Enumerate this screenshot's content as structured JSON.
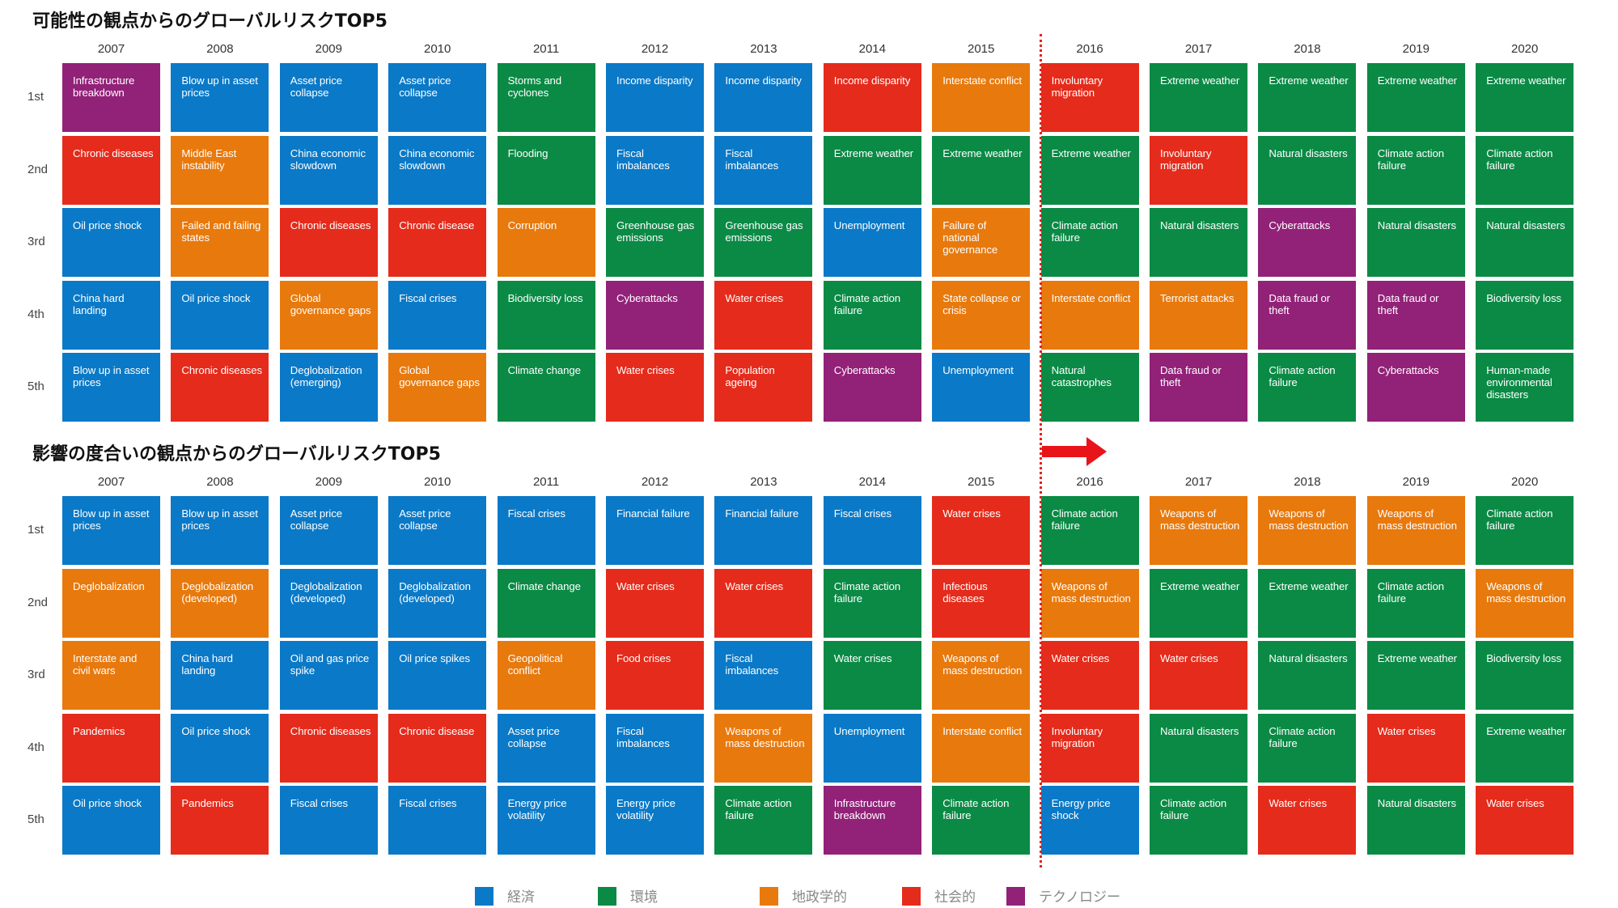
{
  "colors": {
    "economic": "#0a79c7",
    "environmental": "#0a8a45",
    "geopolitical": "#e8790d",
    "societal": "#e52b1b",
    "technological": "#922178"
  },
  "row_labels": [
    "1st",
    "2nd",
    "3rd",
    "4th",
    "5th"
  ],
  "legend": [
    {
      "category": "economic",
      "label": "経済"
    },
    {
      "category": "environmental",
      "label": "環境"
    },
    {
      "category": "geopolitical",
      "label": "地政学的"
    },
    {
      "category": "societal",
      "label": "社会的"
    },
    {
      "category": "technological",
      "label": "テクノロジー"
    }
  ],
  "chart_data": [
    {
      "type": "table",
      "title": "可能性の観点からのグローバルリスクTOP5",
      "years": [
        "2007",
        "2008",
        "2009",
        "2010",
        "2011",
        "2012",
        "2013",
        "2014",
        "2015",
        "2016",
        "2017",
        "2018",
        "2019",
        "2020"
      ],
      "columns": [
        {
          "year": "2007",
          "cells": [
            {
              "label": "Infrastructure breakdown",
              "category": "technological"
            },
            {
              "label": "Chronic diseases",
              "category": "societal"
            },
            {
              "label": "Oil price shock",
              "category": "economic"
            },
            {
              "label": "China hard landing",
              "category": "economic"
            },
            {
              "label": "Blow up in asset prices",
              "category": "economic"
            }
          ]
        },
        {
          "year": "2008",
          "cells": [
            {
              "label": "Blow up in asset prices",
              "category": "economic"
            },
            {
              "label": "Middle East instability",
              "category": "geopolitical"
            },
            {
              "label": "Failed and failing states",
              "category": "geopolitical"
            },
            {
              "label": "Oil price shock",
              "category": "economic"
            },
            {
              "label": "Chronic diseases",
              "category": "societal"
            }
          ]
        },
        {
          "year": "2009",
          "cells": [
            {
              "label": "Asset price collapse",
              "category": "economic"
            },
            {
              "label": "China economic slowdown",
              "category": "economic"
            },
            {
              "label": "Chronic diseases",
              "category": "societal"
            },
            {
              "label": "Global governance gaps",
              "category": "geopolitical"
            },
            {
              "label": "Deglobalization (emerging)",
              "category": "economic"
            }
          ]
        },
        {
          "year": "2010",
          "cells": [
            {
              "label": "Asset price collapse",
              "category": "economic"
            },
            {
              "label": "China economic slowdown",
              "category": "economic"
            },
            {
              "label": "Chronic disease",
              "category": "societal"
            },
            {
              "label": "Fiscal crises",
              "category": "economic"
            },
            {
              "label": "Global governance gaps",
              "category": "geopolitical"
            }
          ]
        },
        {
          "year": "2011",
          "cells": [
            {
              "label": "Storms and cyclones",
              "category": "environmental"
            },
            {
              "label": "Flooding",
              "category": "environmental"
            },
            {
              "label": "Corruption",
              "category": "geopolitical"
            },
            {
              "label": "Biodiversity loss",
              "category": "environmental"
            },
            {
              "label": "Climate change",
              "category": "environmental"
            }
          ]
        },
        {
          "year": "2012",
          "cells": [
            {
              "label": "Income disparity",
              "category": "economic"
            },
            {
              "label": "Fiscal imbalances",
              "category": "economic"
            },
            {
              "label": "Greenhouse gas emissions",
              "category": "environmental"
            },
            {
              "label": "Cyberattacks",
              "category": "technological"
            },
            {
              "label": "Water crises",
              "category": "societal"
            }
          ]
        },
        {
          "year": "2013",
          "cells": [
            {
              "label": "Income disparity",
              "category": "economic"
            },
            {
              "label": "Fiscal imbalances",
              "category": "economic"
            },
            {
              "label": "Greenhouse gas emissions",
              "category": "environmental"
            },
            {
              "label": "Water crises",
              "category": "societal"
            },
            {
              "label": "Population ageing",
              "category": "societal"
            }
          ]
        },
        {
          "year": "2014",
          "cells": [
            {
              "label": "Income disparity",
              "category": "societal"
            },
            {
              "label": "Extreme weather",
              "category": "environmental"
            },
            {
              "label": "Unemployment",
              "category": "economic"
            },
            {
              "label": "Climate action failure",
              "category": "environmental"
            },
            {
              "label": "Cyberattacks",
              "category": "technological"
            }
          ]
        },
        {
          "year": "2015",
          "cells": [
            {
              "label": "Interstate conflict",
              "category": "geopolitical"
            },
            {
              "label": "Extreme weather",
              "category": "environmental"
            },
            {
              "label": "Failure of national governance",
              "category": "geopolitical"
            },
            {
              "label": "State collapse or crisis",
              "category": "geopolitical"
            },
            {
              "label": "Unemployment",
              "category": "economic"
            }
          ]
        },
        {
          "year": "2016",
          "cells": [
            {
              "label": "Involuntary migration",
              "category": "societal"
            },
            {
              "label": "Extreme weather",
              "category": "environmental"
            },
            {
              "label": "Climate action failure",
              "category": "environmental"
            },
            {
              "label": "Interstate conflict",
              "category": "geopolitical"
            },
            {
              "label": "Natural catastrophes",
              "category": "environmental"
            }
          ]
        },
        {
          "year": "2017",
          "cells": [
            {
              "label": "Extreme weather",
              "category": "environmental"
            },
            {
              "label": "Involuntary migration",
              "category": "societal"
            },
            {
              "label": "Natural disasters",
              "category": "environmental"
            },
            {
              "label": "Terrorist attacks",
              "category": "geopolitical"
            },
            {
              "label": "Data fraud or theft",
              "category": "technological"
            }
          ]
        },
        {
          "year": "2018",
          "cells": [
            {
              "label": "Extreme weather",
              "category": "environmental"
            },
            {
              "label": "Natural disasters",
              "category": "environmental"
            },
            {
              "label": "Cyberattacks",
              "category": "technological"
            },
            {
              "label": "Data fraud or theft",
              "category": "technological"
            },
            {
              "label": "Climate action failure",
              "category": "environmental"
            }
          ]
        },
        {
          "year": "2019",
          "cells": [
            {
              "label": "Extreme weather",
              "category": "environmental"
            },
            {
              "label": "Climate action failure",
              "category": "environmental"
            },
            {
              "label": "Natural disasters",
              "category": "environmental"
            },
            {
              "label": "Data fraud or theft",
              "category": "technological"
            },
            {
              "label": "Cyberattacks",
              "category": "technological"
            }
          ]
        },
        {
          "year": "2020",
          "cells": [
            {
              "label": "Extreme weather",
              "category": "environmental"
            },
            {
              "label": "Climate action failure",
              "category": "environmental"
            },
            {
              "label": "Natural disasters",
              "category": "environmental"
            },
            {
              "label": "Biodiversity loss",
              "category": "environmental"
            },
            {
              "label": "Human-made environmental disasters",
              "category": "environmental"
            }
          ]
        }
      ]
    },
    {
      "type": "table",
      "title": "影響の度合いの観点からのグローバルリスクTOP5",
      "years": [
        "2007",
        "2008",
        "2009",
        "2010",
        "2011",
        "2012",
        "2013",
        "2014",
        "2015",
        "2016",
        "2017",
        "2018",
        "2019",
        "2020"
      ],
      "columns": [
        {
          "year": "2007",
          "cells": [
            {
              "label": "Blow up in asset prices",
              "category": "economic"
            },
            {
              "label": "Deglobalization",
              "category": "geopolitical"
            },
            {
              "label": "Interstate and civil wars",
              "category": "geopolitical"
            },
            {
              "label": "Pandemics",
              "category": "societal"
            },
            {
              "label": "Oil price shock",
              "category": "economic"
            }
          ]
        },
        {
          "year": "2008",
          "cells": [
            {
              "label": "Blow up in asset prices",
              "category": "economic"
            },
            {
              "label": "Deglobalization (developed)",
              "category": "geopolitical"
            },
            {
              "label": "China hard landing",
              "category": "economic"
            },
            {
              "label": "Oil price shock",
              "category": "economic"
            },
            {
              "label": "Pandemics",
              "category": "societal"
            }
          ]
        },
        {
          "year": "2009",
          "cells": [
            {
              "label": "Asset price collapse",
              "category": "economic"
            },
            {
              "label": "Deglobalization (developed)",
              "category": "economic"
            },
            {
              "label": "Oil and gas price spike",
              "category": "economic"
            },
            {
              "label": "Chronic diseases",
              "category": "societal"
            },
            {
              "label": "Fiscal crises",
              "category": "economic"
            }
          ]
        },
        {
          "year": "2010",
          "cells": [
            {
              "label": "Asset price collapse",
              "category": "economic"
            },
            {
              "label": "Deglobalization (developed)",
              "category": "economic"
            },
            {
              "label": "Oil price spikes",
              "category": "economic"
            },
            {
              "label": "Chronic disease",
              "category": "societal"
            },
            {
              "label": "Fiscal crises",
              "category": "economic"
            }
          ]
        },
        {
          "year": "2011",
          "cells": [
            {
              "label": "Fiscal crises",
              "category": "economic"
            },
            {
              "label": "Climate change",
              "category": "environmental"
            },
            {
              "label": "Geopolitical conflict",
              "category": "geopolitical"
            },
            {
              "label": "Asset price collapse",
              "category": "economic"
            },
            {
              "label": "Energy price volatility",
              "category": "economic"
            }
          ]
        },
        {
          "year": "2012",
          "cells": [
            {
              "label": "Financial failure",
              "category": "economic"
            },
            {
              "label": "Water crises",
              "category": "societal"
            },
            {
              "label": "Food crises",
              "category": "societal"
            },
            {
              "label": "Fiscal imbalances",
              "category": "economic"
            },
            {
              "label": "Energy price volatility",
              "category": "economic"
            }
          ]
        },
        {
          "year": "2013",
          "cells": [
            {
              "label": "Financial failure",
              "category": "economic"
            },
            {
              "label": "Water crises",
              "category": "societal"
            },
            {
              "label": "Fiscal imbalances",
              "category": "economic"
            },
            {
              "label": "Weapons of mass destruction",
              "category": "geopolitical"
            },
            {
              "label": "Climate action failure",
              "category": "environmental"
            }
          ]
        },
        {
          "year": "2014",
          "cells": [
            {
              "label": "Fiscal crises",
              "category": "economic"
            },
            {
              "label": "Climate action failure",
              "category": "environmental"
            },
            {
              "label": "Water crises",
              "category": "environmental"
            },
            {
              "label": "Unemployment",
              "category": "economic"
            },
            {
              "label": "Infrastructure breakdown",
              "category": "technological"
            }
          ]
        },
        {
          "year": "2015",
          "cells": [
            {
              "label": "Water crises",
              "category": "societal"
            },
            {
              "label": "Infectious diseases",
              "category": "societal"
            },
            {
              "label": "Weapons of mass destruction",
              "category": "geopolitical"
            },
            {
              "label": "Interstate conflict",
              "category": "geopolitical"
            },
            {
              "label": "Climate action failure",
              "category": "environmental"
            }
          ]
        },
        {
          "year": "2016",
          "cells": [
            {
              "label": "Climate action failure",
              "category": "environmental"
            },
            {
              "label": "Weapons of mass destruction",
              "category": "geopolitical"
            },
            {
              "label": "Water crises",
              "category": "societal"
            },
            {
              "label": "Involuntary migration",
              "category": "societal"
            },
            {
              "label": "Energy price shock",
              "category": "economic"
            }
          ]
        },
        {
          "year": "2017",
          "cells": [
            {
              "label": "Weapons of mass destruction",
              "category": "geopolitical"
            },
            {
              "label": "Extreme weather",
              "category": "environmental"
            },
            {
              "label": "Water crises",
              "category": "societal"
            },
            {
              "label": "Natural disasters",
              "category": "environmental"
            },
            {
              "label": "Climate action failure",
              "category": "environmental"
            }
          ]
        },
        {
          "year": "2018",
          "cells": [
            {
              "label": "Weapons of mass destruction",
              "category": "geopolitical"
            },
            {
              "label": "Extreme weather",
              "category": "environmental"
            },
            {
              "label": "Natural disasters",
              "category": "environmental"
            },
            {
              "label": "Climate action failure",
              "category": "environmental"
            },
            {
              "label": "Water crises",
              "category": "societal"
            }
          ]
        },
        {
          "year": "2019",
          "cells": [
            {
              "label": "Weapons of mass destruction",
              "category": "geopolitical"
            },
            {
              "label": "Climate action failure",
              "category": "environmental"
            },
            {
              "label": "Extreme weather",
              "category": "environmental"
            },
            {
              "label": "Water crises",
              "category": "societal"
            },
            {
              "label": "Natural disasters",
              "category": "environmental"
            }
          ]
        },
        {
          "year": "2020",
          "cells": [
            {
              "label": "Climate action failure",
              "category": "environmental"
            },
            {
              "label": "Weapons of mass destruction",
              "category": "geopolitical"
            },
            {
              "label": "Biodiversity loss",
              "category": "environmental"
            },
            {
              "label": "Extreme weather",
              "category": "environmental"
            },
            {
              "label": "Water crises",
              "category": "societal"
            }
          ]
        }
      ]
    }
  ]
}
